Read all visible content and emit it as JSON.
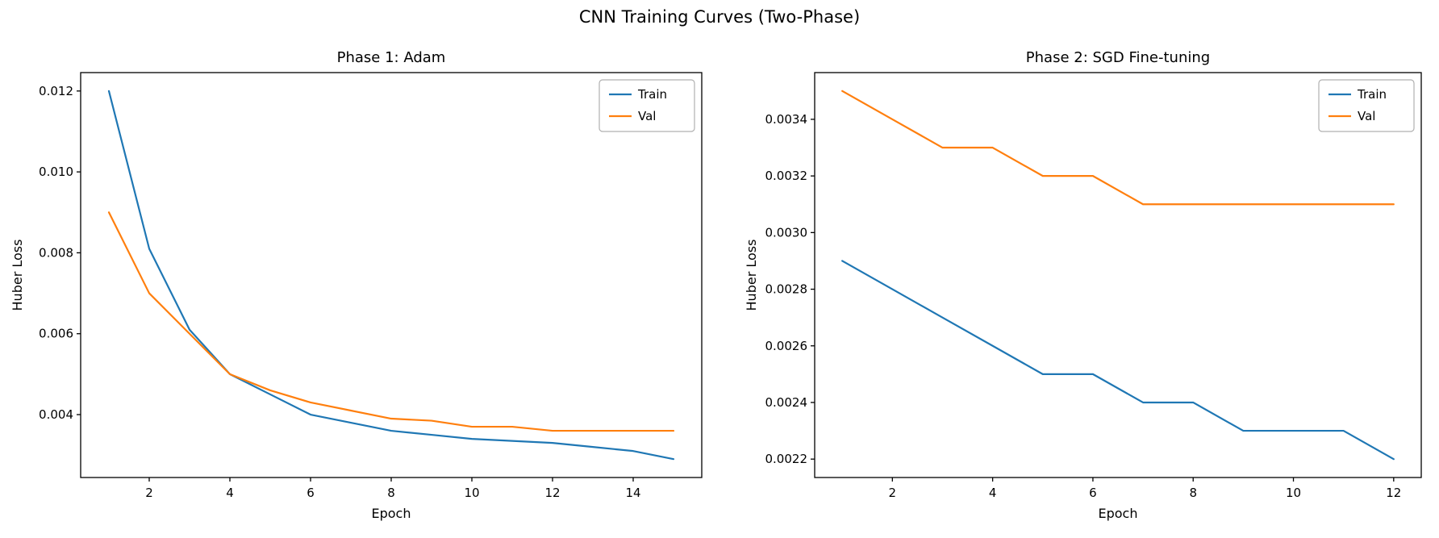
{
  "figure": {
    "title": "CNN Training Curves (Two-Phase)",
    "background": "#ffffff"
  },
  "colors": {
    "train": "#1f77b4",
    "val": "#ff7f0e",
    "axes": "#000000",
    "legend_border": "#b0b0b0"
  },
  "chart_data": [
    {
      "type": "line",
      "title": "Phase 1: Adam",
      "xlabel": "Epoch",
      "ylabel": "Huber Loss",
      "x": [
        1,
        2,
        3,
        4,
        5,
        6,
        7,
        8,
        9,
        10,
        11,
        12,
        13,
        14,
        15
      ],
      "series": [
        {
          "name": "Train",
          "color": "#1f77b4",
          "values": [
            0.012,
            0.0081,
            0.0061,
            0.005,
            0.0045,
            0.004,
            0.0038,
            0.0036,
            0.0035,
            0.0034,
            0.00335,
            0.0033,
            0.0032,
            0.0031,
            0.0029
          ]
        },
        {
          "name": "Val",
          "color": "#ff7f0e",
          "values": [
            0.009,
            0.007,
            0.006,
            0.005,
            0.0046,
            0.0043,
            0.0041,
            0.0039,
            0.00385,
            0.0037,
            0.0037,
            0.0036,
            0.0036,
            0.0036,
            0.0036
          ]
        }
      ],
      "xticks": [
        2,
        4,
        6,
        8,
        10,
        12,
        14
      ],
      "xtick_labels": [
        "2",
        "4",
        "6",
        "8",
        "10",
        "12",
        "14"
      ],
      "yticks": [
        0.004,
        0.006,
        0.008,
        0.01,
        0.012
      ],
      "ytick_labels": [
        "0.004",
        "0.006",
        "0.008",
        "0.010",
        "0.012"
      ],
      "xlim": [
        0.3,
        15.7
      ],
      "ylim": [
        0.002445,
        0.012455
      ],
      "legend_position": "upper right",
      "grid": false
    },
    {
      "type": "line",
      "title": "Phase 2: SGD Fine-tuning",
      "xlabel": "Epoch",
      "ylabel": "Huber Loss",
      "x": [
        1,
        2,
        3,
        4,
        5,
        6,
        7,
        8,
        9,
        10,
        11,
        12
      ],
      "series": [
        {
          "name": "Train",
          "color": "#1f77b4",
          "values": [
            0.0029,
            0.0028,
            0.0027,
            0.0026,
            0.0025,
            0.0025,
            0.0024,
            0.0024,
            0.0023,
            0.0023,
            0.0023,
            0.0022
          ]
        },
        {
          "name": "Val",
          "color": "#ff7f0e",
          "values": [
            0.0035,
            0.0034,
            0.0033,
            0.0033,
            0.0032,
            0.0032,
            0.0031,
            0.0031,
            0.0031,
            0.0031,
            0.0031,
            0.0031
          ]
        }
      ],
      "xticks": [
        2,
        4,
        6,
        8,
        10,
        12
      ],
      "xtick_labels": [
        "2",
        "4",
        "6",
        "8",
        "10",
        "12"
      ],
      "yticks": [
        0.0022,
        0.0024,
        0.0026,
        0.0028,
        0.003,
        0.0032,
        0.0034
      ],
      "ytick_labels": [
        "0.0022",
        "0.0024",
        "0.0026",
        "0.0028",
        "0.0030",
        "0.0032",
        "0.0034"
      ],
      "xlim": [
        0.45,
        12.55
      ],
      "ylim": [
        0.002135,
        0.003565
      ],
      "legend_position": "upper right",
      "grid": false
    }
  ]
}
